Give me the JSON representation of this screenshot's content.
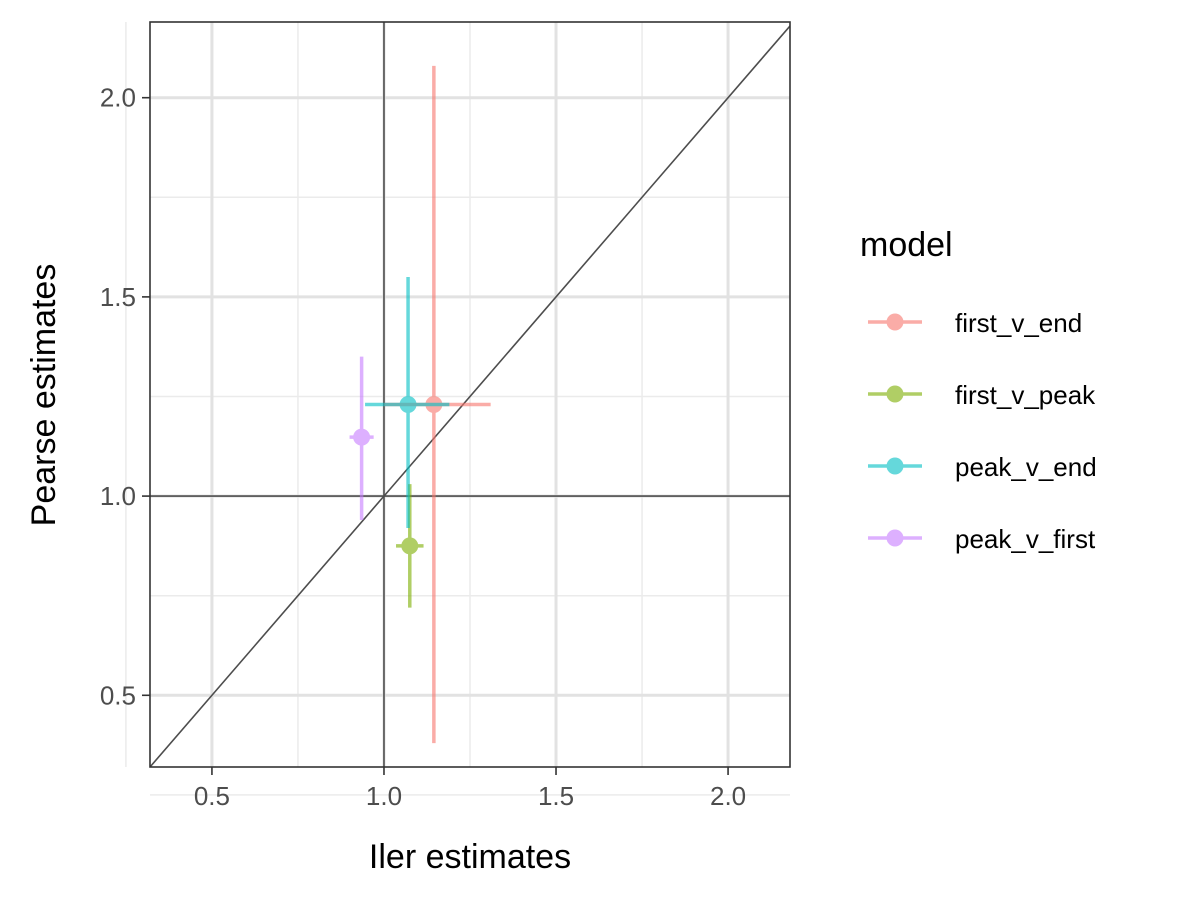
{
  "chart_data": {
    "type": "scatter",
    "xlabel": "Iler estimates",
    "ylabel": "Pearse estimates",
    "xlim": [
      0.32,
      2.18
    ],
    "ylim": [
      0.32,
      2.19
    ],
    "x_ticks": [
      0.5,
      1.0,
      1.5,
      2.0
    ],
    "x_tick_labels": [
      "0.5",
      "1.0",
      "1.5",
      "2.0"
    ],
    "y_ticks": [
      0.5,
      1.0,
      1.5,
      2.0
    ],
    "y_tick_labels": [
      "0.5",
      "1.0",
      "1.5",
      "2.0"
    ],
    "grid": true,
    "reference_lines": {
      "vline_x": 1.0,
      "hline_y": 1.0,
      "identity": true
    },
    "legend": {
      "title": "model",
      "position": "right"
    },
    "series": [
      {
        "name": "first_v_end",
        "color": "#F8766D",
        "x": 1.145,
        "y": 1.23,
        "x_low": 1.0,
        "x_high": 1.31,
        "y_low": 0.38,
        "y_high": 2.08
      },
      {
        "name": "first_v_peak",
        "color": "#7CAE00",
        "x": 1.075,
        "y": 0.875,
        "x_low": 1.035,
        "x_high": 1.115,
        "y_low": 0.72,
        "y_high": 1.03
      },
      {
        "name": "peak_v_end",
        "color": "#00BFC4",
        "x": 1.07,
        "y": 1.23,
        "x_low": 0.945,
        "x_high": 1.19,
        "y_low": 0.92,
        "y_high": 1.55
      },
      {
        "name": "peak_v_first",
        "color": "#C77CFF",
        "x": 0.935,
        "y": 1.148,
        "x_low": 0.9,
        "x_high": 0.97,
        "y_low": 0.94,
        "y_high": 1.35
      }
    ]
  }
}
